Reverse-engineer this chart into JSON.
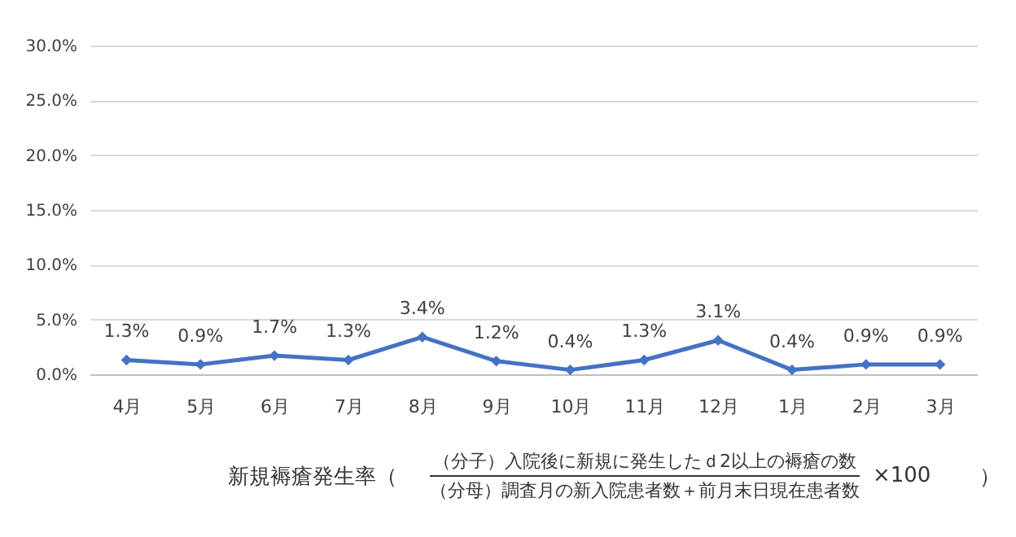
{
  "chart_data": {
    "type": "line",
    "categories": [
      "4月",
      "5月",
      "6月",
      "7月",
      "8月",
      "9月",
      "10月",
      "11月",
      "12月",
      "1月",
      "2月",
      "3月"
    ],
    "series": [
      {
        "color": "#4472c4",
        "values": [
          1.3,
          0.9,
          1.7,
          1.3,
          3.4,
          1.2,
          0.4,
          1.3,
          3.1,
          0.4,
          0.9,
          0.9
        ],
        "value_labels": [
          "1.3%",
          "0.9%",
          "1.7%",
          "1.3%",
          "3.4%",
          "1.2%",
          "0.4%",
          "1.3%",
          "3.1%",
          "0.4%",
          "0.9%",
          "0.9%"
        ]
      }
    ],
    "ylim": [
      0,
      30
    ],
    "yticks": [
      {
        "value": 0,
        "label": "0.0%"
      },
      {
        "value": 5,
        "label": "5.0%"
      },
      {
        "value": 10,
        "label": "10.0%"
      },
      {
        "value": 15,
        "label": "15.0%"
      },
      {
        "value": 20,
        "label": "20.0%"
      },
      {
        "value": 25,
        "label": "25.0%"
      },
      {
        "value": 30,
        "label": "30.0%"
      }
    ],
    "grid": "y",
    "marker": "diamond",
    "line_style": "solid",
    "annotations": [
      "新規褥瘡発生率（",
      "（分子）入院後に新規に発生したｄ2以上の褥瘡の数",
      "（分母）調査月の新入院患者数＋前月末日現在患者数",
      "×100",
      "）"
    ]
  }
}
